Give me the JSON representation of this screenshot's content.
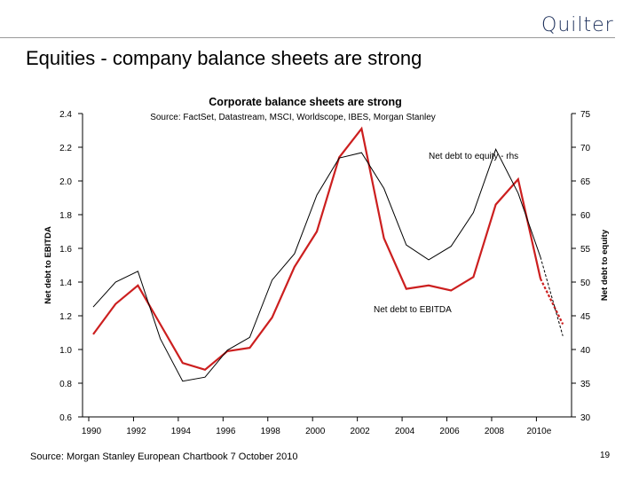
{
  "header": {
    "logo": "Quilter",
    "title": "Equities - company balance sheets are strong"
  },
  "footer": {
    "source": "Source: Morgan Stanley European Chartbook 7 October 2010",
    "page_number": "19"
  },
  "colors": {
    "ebitda": "#cc1f1f",
    "equity": "#000000",
    "logo": "#1c2f5a"
  },
  "chart_data": {
    "type": "line",
    "title": "Corporate balance sheets are strong",
    "subtitle": "Source: FactSet, Datastream, MSCI, Worldscope, IBES, Morgan Stanley",
    "ylabel": "Net debt to EBITDA",
    "y2label": "Net debt to equity",
    "ylim": [
      0.6,
      2.4
    ],
    "y2lim": [
      30,
      75
    ],
    "yticks": [
      "0.6",
      "0.8",
      "1.0",
      "1.2",
      "1.4",
      "1.6",
      "1.8",
      "2.0",
      "2.2",
      "2.4"
    ],
    "y2ticks": [
      "30",
      "35",
      "40",
      "45",
      "50",
      "55",
      "60",
      "65",
      "70",
      "75"
    ],
    "xticks": [
      "1990",
      "1992",
      "1994",
      "1996",
      "1998",
      "2000",
      "2002",
      "2004",
      "2006",
      "2008",
      "2010e"
    ],
    "grid": false,
    "x": [
      1990,
      1991,
      1992,
      1993,
      1994,
      1995,
      1996,
      1997,
      1998,
      1999,
      2000,
      2001,
      2002,
      2003,
      2004,
      2005,
      2006,
      2007,
      2008,
      2009,
      2010,
      2011
    ],
    "series": [
      {
        "name": "Net debt to EBITDA",
        "axis": "left",
        "color": "#cc1f1f",
        "values": [
          1.09,
          1.27,
          1.38,
          1.15,
          0.92,
          0.88,
          0.99,
          1.01,
          1.19,
          1.49,
          1.7,
          2.14,
          2.31,
          1.66,
          1.36,
          1.38,
          1.35,
          1.43,
          1.86,
          2.01,
          1.42,
          1.15
        ],
        "forecast_from": 2010
      },
      {
        "name": "Net debt to equity - rhs",
        "axis": "right",
        "color": "#000000",
        "values": [
          46.3,
          50.0,
          51.6,
          41.6,
          35.3,
          35.9,
          39.9,
          41.8,
          50.3,
          54.2,
          62.9,
          68.4,
          69.2,
          63.9,
          55.5,
          53.3,
          55.3,
          60.3,
          69.7,
          63.2,
          53.7,
          42.0
        ],
        "forecast_from": 2010
      }
    ]
  }
}
